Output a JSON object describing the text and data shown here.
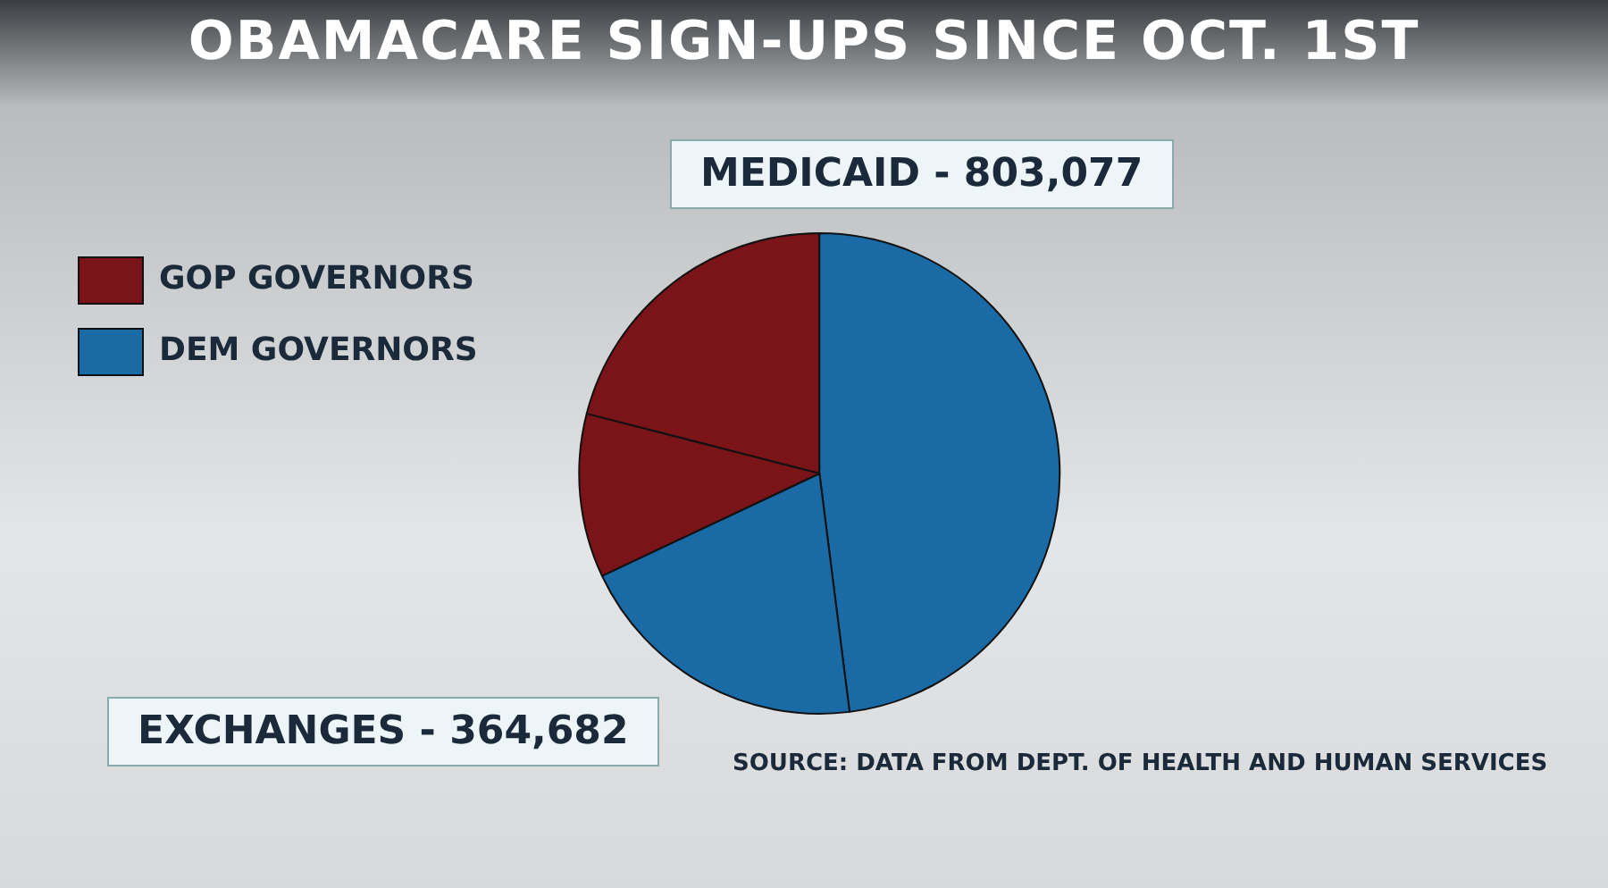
{
  "chart_data": {
    "type": "pie",
    "title": "OBAMACARE SIGN-UPS SINCE OCT. 1ST",
    "categories": [
      "GOP GOVERNORS",
      "DEM GOVERNORS",
      null,
      null
    ],
    "values": [
      21,
      48,
      20,
      11
    ],
    "colors": [
      "#7a1419",
      "#1a6aa5",
      "#1a6aa5",
      "#7a1419"
    ],
    "legend": "top left",
    "annotations": [
      "MEDICAID - 803,077",
      "EXCHANGES - 364,682",
      "SOURCE: DATA FROM DEPT. OF HEALTH AND HUMAN SERVICES"
    ]
  }
}
